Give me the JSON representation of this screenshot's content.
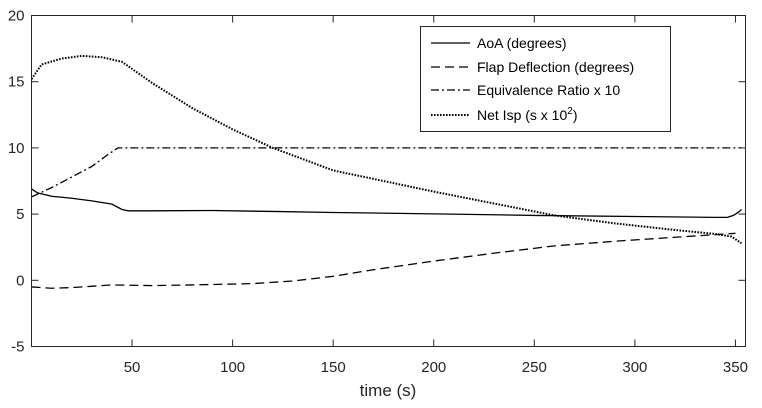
{
  "chart_data": {
    "type": "line",
    "title": "",
    "xlabel": "time (s)",
    "ylabel": "",
    "xlim": [
      0,
      355
    ],
    "ylim": [
      -5,
      20
    ],
    "xticks": [
      50,
      100,
      150,
      200,
      250,
      300,
      350
    ],
    "yticks": [
      -5,
      0,
      5,
      10,
      15,
      20
    ],
    "grid": false,
    "legend_position": "top-right",
    "series": [
      {
        "name": "AoA (degrees)",
        "linestyle": "solid",
        "color": "#000000",
        "points": [
          [
            0,
            6.9
          ],
          [
            3,
            6.6
          ],
          [
            10,
            6.35
          ],
          [
            20,
            6.2
          ],
          [
            30,
            6.0
          ],
          [
            40,
            5.75
          ],
          [
            45,
            5.35
          ],
          [
            48,
            5.25
          ],
          [
            60,
            5.25
          ],
          [
            90,
            5.27
          ],
          [
            120,
            5.2
          ],
          [
            150,
            5.12
          ],
          [
            200,
            5.02
          ],
          [
            250,
            4.9
          ],
          [
            300,
            4.82
          ],
          [
            340,
            4.75
          ],
          [
            346,
            4.75
          ],
          [
            349,
            4.9
          ],
          [
            352,
            5.2
          ],
          [
            353,
            5.35
          ]
        ]
      },
      {
        "name": "Flap Deflection (degrees)",
        "linestyle": "dashed",
        "color": "#000000",
        "points": [
          [
            0,
            -0.5
          ],
          [
            10,
            -0.6
          ],
          [
            20,
            -0.55
          ],
          [
            40,
            -0.35
          ],
          [
            60,
            -0.4
          ],
          [
            80,
            -0.35
          ],
          [
            110,
            -0.25
          ],
          [
            130,
            -0.05
          ],
          [
            150,
            0.3
          ],
          [
            170,
            0.8
          ],
          [
            200,
            1.45
          ],
          [
            230,
            2.05
          ],
          [
            260,
            2.6
          ],
          [
            290,
            2.95
          ],
          [
            320,
            3.25
          ],
          [
            340,
            3.45
          ],
          [
            350,
            3.55
          ]
        ]
      },
      {
        "name": "Equivalence Ratio x 10",
        "linestyle": "dashdot",
        "color": "#000000",
        "points": [
          [
            0,
            6.3
          ],
          [
            10,
            7.0
          ],
          [
            20,
            7.8
          ],
          [
            30,
            8.6
          ],
          [
            38,
            9.5
          ],
          [
            43,
            10.0
          ],
          [
            100,
            10.0
          ],
          [
            200,
            10.0
          ],
          [
            300,
            10.0
          ],
          [
            353,
            10.0
          ]
        ]
      },
      {
        "name": "Net Isp (s x 10²)",
        "linestyle": "dotted",
        "color": "#000000",
        "points": [
          [
            0,
            15.2
          ],
          [
            5,
            16.3
          ],
          [
            15,
            16.75
          ],
          [
            25,
            16.95
          ],
          [
            35,
            16.85
          ],
          [
            45,
            16.5
          ],
          [
            60,
            14.9
          ],
          [
            80,
            13.0
          ],
          [
            100,
            11.4
          ],
          [
            120,
            10.0
          ],
          [
            150,
            8.3
          ],
          [
            175,
            7.5
          ],
          [
            200,
            6.7
          ],
          [
            230,
            5.8
          ],
          [
            260,
            4.9
          ],
          [
            290,
            4.3
          ],
          [
            320,
            3.8
          ],
          [
            340,
            3.5
          ],
          [
            348,
            3.3
          ],
          [
            353,
            2.8
          ]
        ]
      }
    ],
    "legend": [
      {
        "label": "AoA (degrees)"
      },
      {
        "label": "Flap Deflection (degrees)"
      },
      {
        "label": "Equivalence Ratio x 10"
      },
      {
        "label_main": "Net Isp (s x 10",
        "label_sup": "2",
        "label_tail": ")"
      }
    ]
  }
}
